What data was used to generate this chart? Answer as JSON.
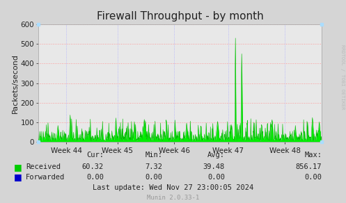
{
  "title": "Firewall Throughput - by month",
  "ylabel": "Packets/second",
  "bg_color": "#d5d5d5",
  "plot_bg_color": "#e8e8e8",
  "grid_color": "#ff9999",
  "ylim": [
    0,
    600
  ],
  "yticks": [
    0,
    100,
    200,
    300,
    400,
    500,
    600
  ],
  "week_labels": [
    "Week 44",
    "Week 45",
    "Week 46",
    "Week 47",
    "Week 48"
  ],
  "fill_color": "#00ee00",
  "line_color": "#00bb00",
  "stats": {
    "received": {
      "cur": "60.32",
      "min": "7.32",
      "avg": "39.48",
      "max": "856.17"
    },
    "forwarded": {
      "cur": "0.00",
      "min": "0.00",
      "avg": "0.00",
      "max": "0.00"
    }
  },
  "last_update": "Last update: Wed Nov 27 23:00:05 2024",
  "watermark": "Munin 2.0.33-1",
  "rrdtool_text": "RRDTOOL / TOBI OETIKER",
  "n_points": 1000
}
